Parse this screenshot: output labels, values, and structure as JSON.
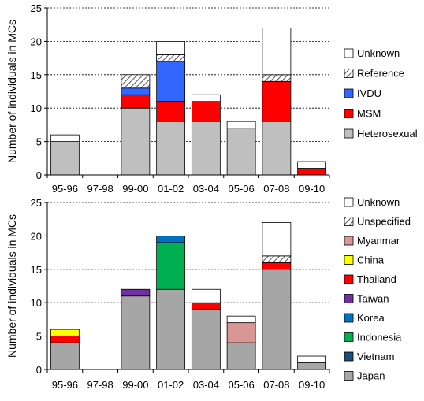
{
  "chart_data": [
    {
      "type": "bar",
      "stacked": true,
      "ylabel": "Number of individuals in MCs",
      "ylim": [
        0,
        25
      ],
      "yticks": [
        0,
        5,
        10,
        15,
        20,
        25
      ],
      "grid": true,
      "legend_position": "right",
      "categories": [
        "95-96",
        "97-98",
        "99-00",
        "01-02",
        "03-04",
        "05-06",
        "07-08",
        "09-10"
      ],
      "series": [
        {
          "name": "Heterosexual",
          "color": "#bfbfbf",
          "pattern": "solid",
          "values": [
            5,
            0,
            10,
            8,
            8,
            7,
            8,
            0
          ]
        },
        {
          "name": "MSM",
          "color": "#ff0000",
          "pattern": "solid",
          "values": [
            0,
            0,
            2,
            3,
            3,
            0,
            6,
            1
          ]
        },
        {
          "name": "IVDU",
          "color": "#3366ff",
          "pattern": "solid",
          "values": [
            0,
            0,
            1,
            6,
            0,
            0,
            0,
            0
          ]
        },
        {
          "name": "Reference",
          "color": "#ffffff",
          "pattern": "hatch",
          "values": [
            0,
            0,
            2,
            1,
            0,
            0,
            1,
            0
          ]
        },
        {
          "name": "Unknown",
          "color": "#ffffff",
          "pattern": "solid",
          "values": [
            1,
            0,
            0,
            2,
            1,
            1,
            7,
            1
          ]
        }
      ]
    },
    {
      "type": "bar",
      "stacked": true,
      "ylabel": "Number of individuals in MCs",
      "ylim": [
        0,
        25
      ],
      "yticks": [
        0,
        5,
        10,
        15,
        20,
        25
      ],
      "grid": true,
      "legend_position": "right",
      "categories": [
        "95-96",
        "97-98",
        "99-00",
        "01-02",
        "03-04",
        "05-06",
        "07-08",
        "09-10"
      ],
      "series": [
        {
          "name": "Japan",
          "color": "#a6a6a6",
          "pattern": "solid",
          "values": [
            4,
            0,
            11,
            12,
            9,
            4,
            15,
            1
          ]
        },
        {
          "name": "Vietnam",
          "color": "#1f4e79",
          "pattern": "solid",
          "values": [
            0,
            0,
            0,
            0,
            0,
            0,
            0,
            0
          ]
        },
        {
          "name": "Indonesia",
          "color": "#00b050",
          "pattern": "solid",
          "values": [
            0,
            0,
            0,
            7,
            0,
            0,
            0,
            0
          ]
        },
        {
          "name": "Korea",
          "color": "#0070c0",
          "pattern": "solid",
          "values": [
            0,
            0,
            0,
            1,
            0,
            0,
            0,
            0
          ]
        },
        {
          "name": "Taiwan",
          "color": "#7030a0",
          "pattern": "solid",
          "values": [
            0,
            0,
            1,
            0,
            0,
            0,
            0,
            0
          ]
        },
        {
          "name": "Thailand",
          "color": "#ff0000",
          "pattern": "solid",
          "values": [
            1,
            0,
            0,
            0,
            1,
            0,
            1,
            0
          ]
        },
        {
          "name": "China",
          "color": "#ffff00",
          "pattern": "solid",
          "values": [
            1,
            0,
            0,
            0,
            0,
            0,
            0,
            0
          ]
        },
        {
          "name": "Myanmar",
          "color": "#d99694",
          "pattern": "solid",
          "values": [
            0,
            0,
            0,
            0,
            0,
            3,
            0,
            0
          ]
        },
        {
          "name": "Unspecified",
          "color": "#ffffff",
          "pattern": "hatch",
          "values": [
            0,
            0,
            0,
            0,
            0,
            0,
            1,
            0
          ]
        },
        {
          "name": "Unknown",
          "color": "#ffffff",
          "pattern": "solid",
          "values": [
            0,
            0,
            0,
            0,
            2,
            1,
            5,
            1
          ]
        }
      ]
    }
  ]
}
